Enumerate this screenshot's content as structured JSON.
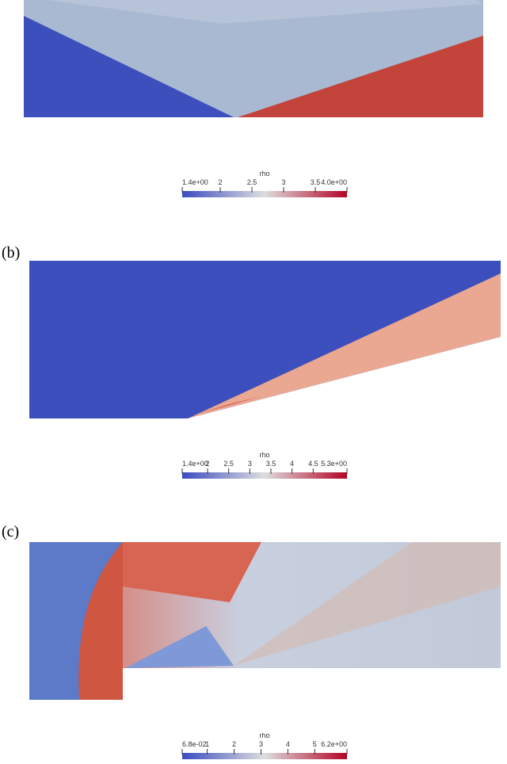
{
  "panels": [
    {
      "label": null,
      "colorbar": {
        "title": "rho",
        "range": [
          1.4,
          4.0
        ],
        "ticks": [
          {
            "value": 1.4,
            "label": "1.4e+00"
          },
          {
            "value": 2,
            "label": "2"
          },
          {
            "value": 2.5,
            "label": "2.5"
          },
          {
            "value": 3,
            "label": "3"
          },
          {
            "value": 3.5,
            "label": "3.5"
          },
          {
            "value": 4.0,
            "label": "4.0e+00"
          }
        ]
      }
    },
    {
      "label": "(b)",
      "colorbar": {
        "title": "rho",
        "range": [
          1.4,
          5.3
        ],
        "ticks": [
          {
            "value": 1.4,
            "label": "1.4e+00"
          },
          {
            "value": 2,
            "label": "2"
          },
          {
            "value": 2.5,
            "label": "2.5"
          },
          {
            "value": 3,
            "label": "3"
          },
          {
            "value": 3.5,
            "label": "3.5"
          },
          {
            "value": 4,
            "label": "4"
          },
          {
            "value": 4.5,
            "label": "4.5"
          },
          {
            "value": 5.3,
            "label": "5.3e+00"
          }
        ]
      }
    },
    {
      "label": "(c)",
      "colorbar": {
        "title": "rho",
        "range": [
          0.068,
          6.2
        ],
        "ticks": [
          {
            "value": 0.068,
            "label": "6.8e-02"
          },
          {
            "value": 1,
            "label": "1"
          },
          {
            "value": 2,
            "label": "2"
          },
          {
            "value": 3,
            "label": "3"
          },
          {
            "value": 4,
            "label": "4"
          },
          {
            "value": 5,
            "label": "5"
          },
          {
            "value": 6.2,
            "label": "6.2e+00"
          }
        ]
      }
    }
  ]
}
